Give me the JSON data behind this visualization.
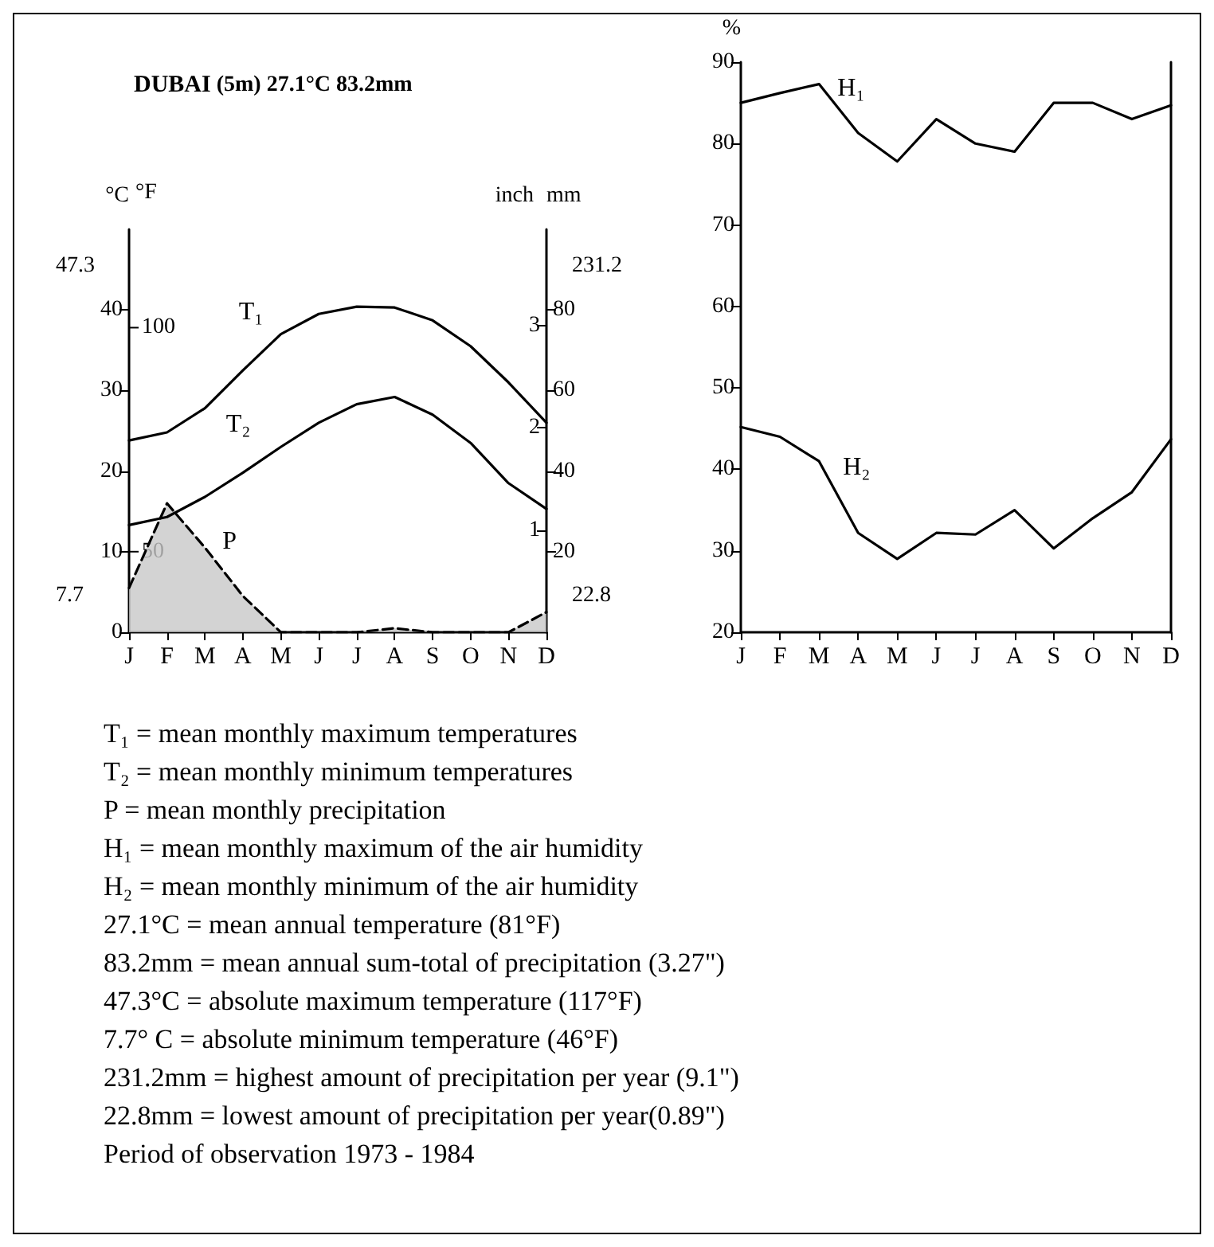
{
  "chart_data": [
    {
      "type": "line",
      "title": "DUBAI (5m) 27.1°C 83.2mm",
      "categories": [
        "J",
        "F",
        "M",
        "A",
        "M",
        "J",
        "J",
        "A",
        "S",
        "O",
        "N",
        "D"
      ],
      "ylabel": "°C",
      "y2label": "mm",
      "y3label": "inch",
      "ylim": [
        0,
        50
      ],
      "yticks": [
        0,
        10,
        20,
        30,
        40
      ],
      "y2lim": [
        0,
        100
      ],
      "y2ticks": [
        20,
        40,
        60,
        80
      ],
      "y3lim": [
        0,
        3.94
      ],
      "y3ticks": [
        1,
        2,
        3
      ],
      "grid": false,
      "legend": false,
      "marker": "none",
      "series": [
        {
          "name": "T₁",
          "color": "#000000",
          "values": [
            23.8,
            24.8,
            27.8,
            32.5,
            37,
            39.5,
            40.4,
            40.3,
            38.7,
            35.5,
            31,
            26
          ]
        },
        {
          "name": "T₂",
          "color": "#000000",
          "values": [
            13.3,
            14.3,
            16.8,
            19.8,
            23,
            26,
            28.3,
            29.2,
            27,
            23.5,
            18.5,
            15.3
          ]
        },
        {
          "name": "P",
          "type": "area",
          "axis": "y2",
          "line_style": "dashed",
          "color": "#000000",
          "values": [
            11,
            32,
            21,
            9,
            0,
            0,
            0,
            1,
            0,
            0,
            0,
            5
          ]
        }
      ],
      "annotations": [
        "47.3",
        "7.7",
        "231.2",
        "22.8",
        "°F",
        "50",
        "100"
      ]
    },
    {
      "type": "line",
      "categories": [
        "J",
        "F",
        "M",
        "A",
        "M",
        "J",
        "J",
        "A",
        "S",
        "O",
        "N",
        "D"
      ],
      "ylabel": "%",
      "ylim": [
        20,
        90
      ],
      "yticks": [
        20,
        30,
        40,
        50,
        60,
        70,
        80,
        90
      ],
      "grid": false,
      "legend": false,
      "marker": "none",
      "series": [
        {
          "name": "H₁",
          "color": "#000000",
          "values": [
            85,
            86.2,
            87.3,
            81.3,
            77.8,
            83,
            80,
            79,
            85,
            85,
            83,
            84.7
          ]
        },
        {
          "name": "H₂",
          "color": "#000000",
          "values": [
            45.2,
            44,
            41,
            32.2,
            29,
            32.2,
            32,
            35,
            30.3,
            34,
            37.2,
            43.7
          ]
        }
      ]
    },
    {
      "type": "other",
      "annotations": [
        "T₁ = mean monthly maximum temperatures",
        "T₂ = mean monthly minimum temperatures",
        "P = mean monthly precipitation",
        "H₁ = mean monthly maximum of the air humidity",
        "H₂ = mean monthly minimum of the air humidity",
        "27.1°C = mean annual temperature (81°F)",
        "83.2mm = mean annual sum-total of precipitation (3.27\")",
        "47.3°C = absolute maximum temperature (117°F)",
        "7.7° C = absolute minimum temperature (46°F)",
        "231.2mm = highest amount of precipitation per year (9.1\")",
        "22.8mm = lowest amount of precipitation per year(0.89\")",
        "Period of observation 1973 - 1984"
      ]
    }
  ]
}
